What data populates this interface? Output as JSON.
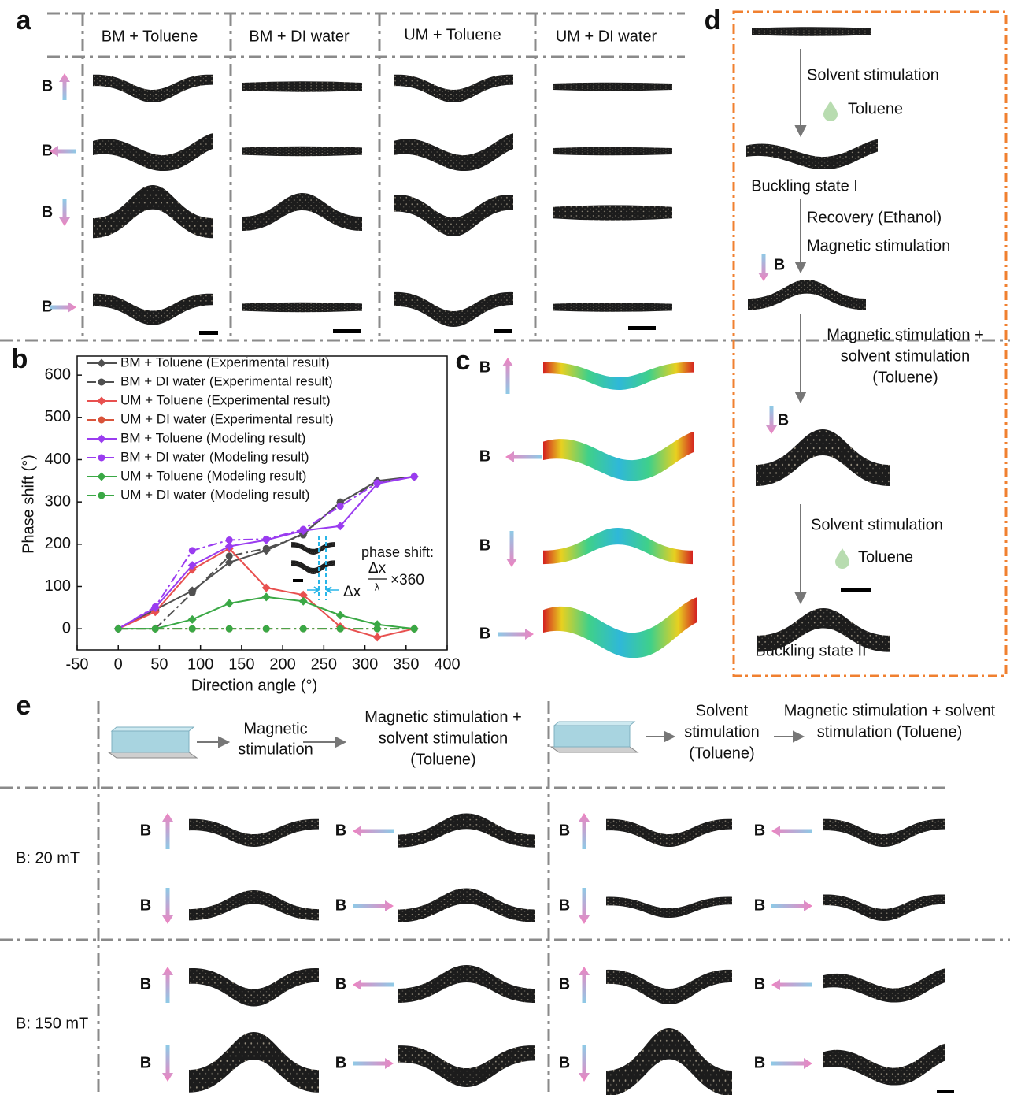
{
  "figure": {
    "panel_labels": [
      "a",
      "b",
      "c",
      "d",
      "e"
    ],
    "field_label": "B",
    "panel_a": {
      "columns": [
        "BM + Toluene",
        "BM + DI water",
        "UM + Toluene",
        "UM + DI water"
      ]
    },
    "panel_d": {
      "texts": [
        "Solvent stimulation",
        "Toluene",
        "Buckling state I",
        "Recovery (Ethanol)",
        "Magnetic stimulation",
        "Magnetic stimulation +",
        "solvent stimulation",
        "(Toluene)",
        "Solvent stimulation",
        "Toluene",
        "Buckling state II"
      ]
    },
    "panel_e": {
      "header_left": [
        "Magnetic",
        "stimulation",
        "Magnetic stimulation +",
        "solvent stimulation",
        "(Toluene)"
      ],
      "header_right": [
        "Solvent",
        "stimulation",
        "(Toluene)",
        "Magnetic stimulation + solvent",
        "stimulation (Toluene)"
      ],
      "field_strengths": [
        "B: 20 mT",
        "B: 150 mT"
      ]
    }
  },
  "chart_data": {
    "type": "line",
    "xlabel": "Direction angle (°)",
    "ylabel": "Phase shift (°)",
    "x": [
      0,
      45,
      90,
      135,
      180,
      225,
      270,
      315,
      360
    ],
    "series": [
      {
        "name": "BM + Toluene (Experimental result)",
        "color": "#505050",
        "line_style": "solid",
        "marker": "diamond",
        "values": [
          0,
          45,
          90,
          157,
          185,
          225,
          298,
          350,
          360
        ]
      },
      {
        "name": "BM + DI water (Experimental result)",
        "color": "#505050",
        "line_style": "dashdot",
        "marker": "circle",
        "values": [
          0,
          0,
          85,
          172,
          190,
          222,
          300,
          345,
          360
        ]
      },
      {
        "name": "UM + Toluene (Experimental result)",
        "color": "#e8504f",
        "line_style": "solid",
        "marker": "diamond",
        "values": [
          0,
          40,
          140,
          190,
          97,
          80,
          5,
          -20,
          0
        ]
      },
      {
        "name": "UM + DI water (Experimental result)",
        "color": "#d9533a",
        "line_style": "dashdot",
        "marker": "circle",
        "values": [
          0,
          0,
          0,
          0,
          0,
          0,
          0,
          0,
          0
        ]
      },
      {
        "name": "BM + Toluene (Modeling result)",
        "color": "#9a3cf0",
        "line_style": "solid",
        "marker": "diamond",
        "values": [
          0,
          50,
          150,
          195,
          210,
          232,
          243,
          343,
          360
        ]
      },
      {
        "name": "BM + DI water (Modeling result)",
        "color": "#9a3cf0",
        "line_style": "dashdot",
        "marker": "circle",
        "values": [
          0,
          52,
          185,
          210,
          212,
          235,
          290,
          345,
          360
        ]
      },
      {
        "name": "UM + Toluene (Modeling result)",
        "color": "#3aa845",
        "line_style": "solid",
        "marker": "diamond",
        "values": [
          0,
          0,
          22,
          60,
          75,
          65,
          32,
          10,
          0
        ]
      },
      {
        "name": "UM + DI water (Modeling result)",
        "color": "#3aa845",
        "line_style": "dashdot",
        "marker": "circle",
        "values": [
          0,
          0,
          0,
          0,
          0,
          0,
          0,
          0,
          0
        ]
      }
    ],
    "xlim": [
      -50,
      400
    ],
    "xticks": [
      -50,
      0,
      50,
      100,
      150,
      200,
      250,
      300,
      350,
      400
    ],
    "ylim": [
      -50,
      645
    ],
    "yticks": [
      0,
      100,
      200,
      300,
      400,
      500,
      600
    ],
    "grid": false,
    "legend": "upper left",
    "annotations": {
      "label": "phase shift:",
      "numerator": "Δx",
      "denominator": "λ",
      "factor": "×360",
      "offset": "Δx"
    }
  }
}
